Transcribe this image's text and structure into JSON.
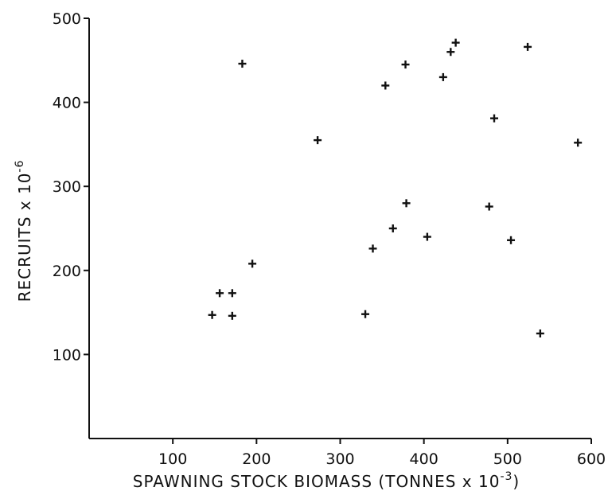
{
  "chart_data": {
    "type": "scatter",
    "title": "",
    "xlabel": "SPAWNING STOCK BIOMASS (TONNES x 10",
    "xlabel_sup": "-3",
    "xlabel_end": ")",
    "ylabel": "RECRUITS x 10",
    "ylabel_sup": "-6",
    "xlim": [
      0,
      600
    ],
    "ylim": [
      0,
      500
    ],
    "x_ticks": [
      100,
      200,
      300,
      400,
      500,
      600
    ],
    "y_ticks": [
      100,
      200,
      300,
      400,
      500
    ],
    "grid": false,
    "marker": "plus",
    "points": [
      {
        "x": 147,
        "y": 147
      },
      {
        "x": 156,
        "y": 173
      },
      {
        "x": 171,
        "y": 173
      },
      {
        "x": 171,
        "y": 146
      },
      {
        "x": 183,
        "y": 446
      },
      {
        "x": 195,
        "y": 208
      },
      {
        "x": 273,
        "y": 355
      },
      {
        "x": 330,
        "y": 148
      },
      {
        "x": 339,
        "y": 226
      },
      {
        "x": 354,
        "y": 420
      },
      {
        "x": 363,
        "y": 250
      },
      {
        "x": 378,
        "y": 445
      },
      {
        "x": 379,
        "y": 280
      },
      {
        "x": 404,
        "y": 240
      },
      {
        "x": 423,
        "y": 430
      },
      {
        "x": 432,
        "y": 460
      },
      {
        "x": 438,
        "y": 471
      },
      {
        "x": 478,
        "y": 276
      },
      {
        "x": 484,
        "y": 381
      },
      {
        "x": 504,
        "y": 236
      },
      {
        "x": 524,
        "y": 466
      },
      {
        "x": 539,
        "y": 125
      },
      {
        "x": 584,
        "y": 352
      }
    ]
  }
}
